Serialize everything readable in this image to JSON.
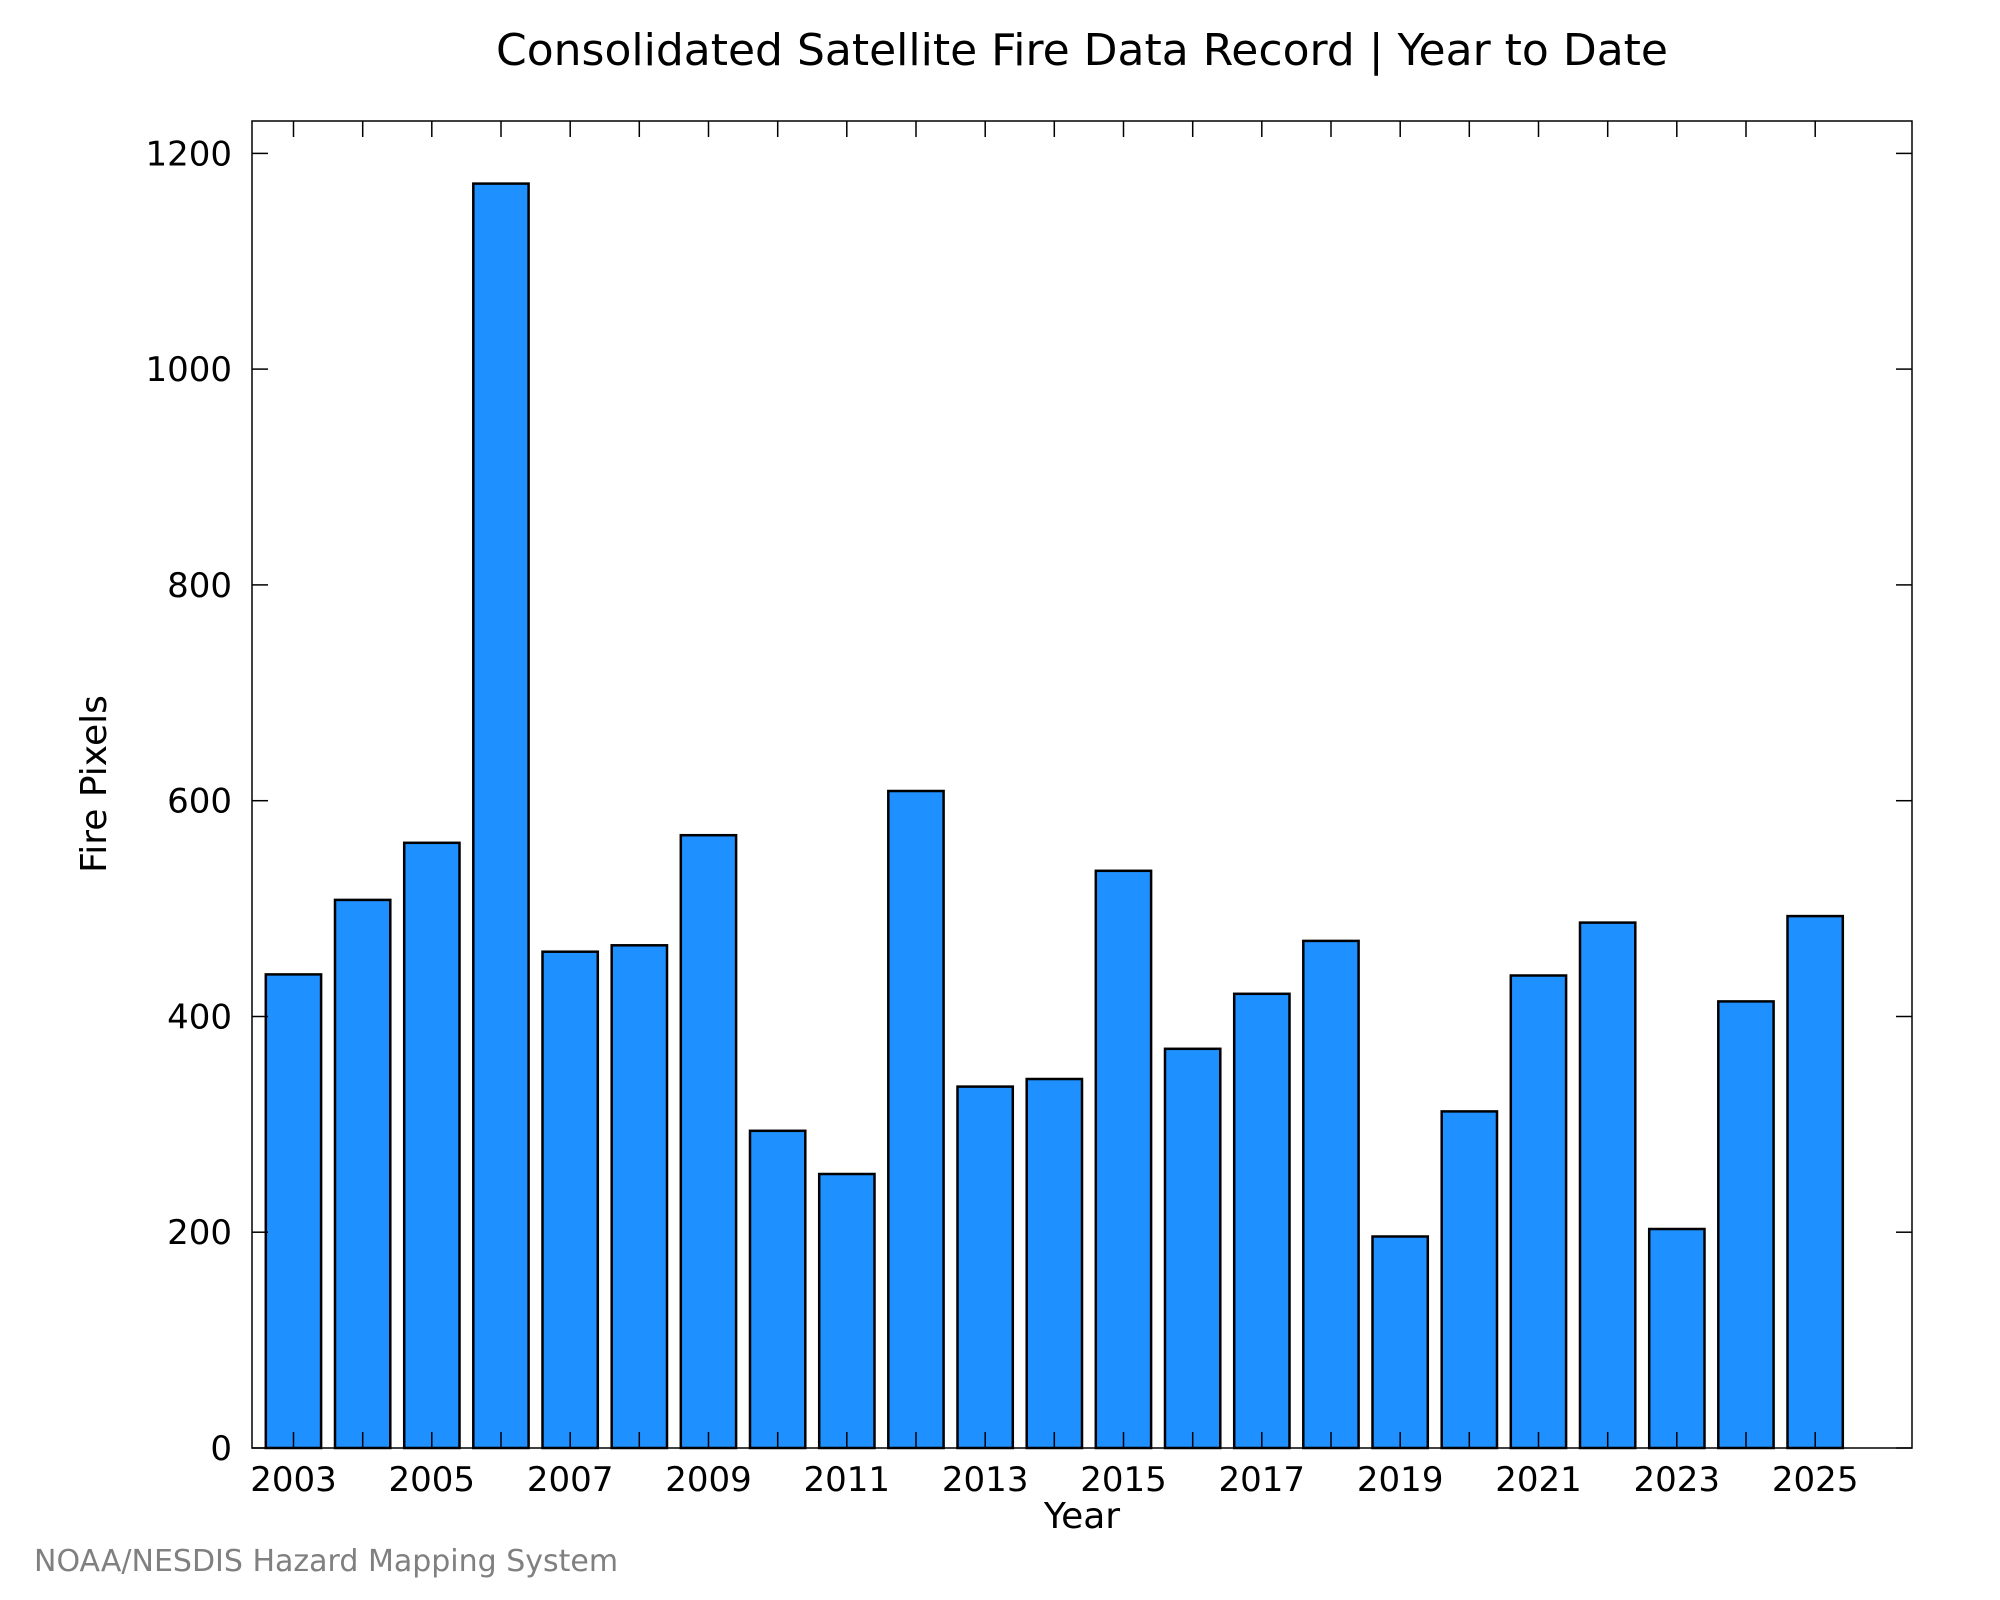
{
  "chart_data": {
    "type": "bar",
    "title": "Consolidated Satellite Fire Data Record | Year to Date",
    "xlabel": "Year",
    "ylabel": "Fire Pixels",
    "categories": [
      2003,
      2004,
      2005,
      2006,
      2007,
      2008,
      2009,
      2010,
      2011,
      2012,
      2013,
      2014,
      2015,
      2016,
      2017,
      2018,
      2019,
      2020,
      2021,
      2022,
      2023,
      2024,
      2025
    ],
    "values": [
      439,
      508,
      561,
      1172,
      460,
      466,
      568,
      294,
      254,
      609,
      335,
      342,
      535,
      370,
      421,
      470,
      196,
      312,
      438,
      487,
      203,
      414,
      493
    ],
    "x_tick_labels": [
      "2003",
      "2005",
      "2007",
      "2009",
      "2011",
      "2013",
      "2015",
      "2017",
      "2019",
      "2021",
      "2023",
      "2025"
    ],
    "y_tick_labels": [
      "0",
      "200",
      "400",
      "600",
      "800",
      "1000",
      "1200"
    ],
    "y_ticks": [
      0,
      200,
      400,
      600,
      800,
      1000,
      1200
    ],
    "xlim": [
      2002.4,
      2026.4
    ],
    "ylim": [
      0,
      1230
    ],
    "grid": false,
    "colors": {
      "bar_fill": "#1e90ff",
      "bar_stroke": "#000000"
    },
    "credit": "NOAA/NESDIS Hazard Mapping System"
  }
}
